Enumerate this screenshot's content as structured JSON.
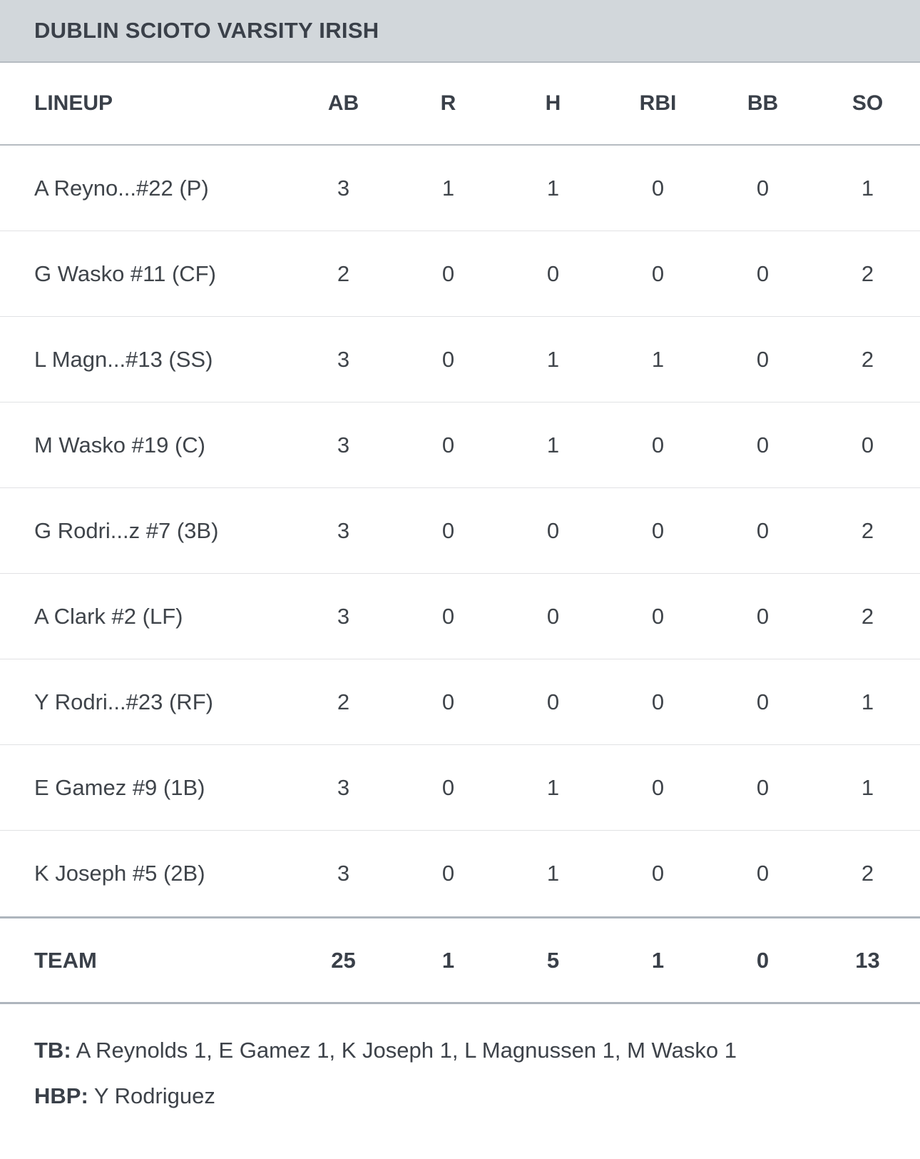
{
  "header": {
    "title": "DUBLIN SCIOTO VARSITY IRISH"
  },
  "table": {
    "columns": [
      "LINEUP",
      "AB",
      "R",
      "H",
      "RBI",
      "BB",
      "SO"
    ],
    "rows": [
      {
        "name": "A Reyno...#22 (P)",
        "ab": "3",
        "r": "1",
        "h": "1",
        "rbi": "0",
        "bb": "0",
        "so": "1"
      },
      {
        "name": "G Wasko #11 (CF)",
        "ab": "2",
        "r": "0",
        "h": "0",
        "rbi": "0",
        "bb": "0",
        "so": "2"
      },
      {
        "name": "L Magn...#13 (SS)",
        "ab": "3",
        "r": "0",
        "h": "1",
        "rbi": "1",
        "bb": "0",
        "so": "2"
      },
      {
        "name": "M Wasko #19 (C)",
        "ab": "3",
        "r": "0",
        "h": "1",
        "rbi": "0",
        "bb": "0",
        "so": "0"
      },
      {
        "name": "G Rodri...z #7 (3B)",
        "ab": "3",
        "r": "0",
        "h": "0",
        "rbi": "0",
        "bb": "0",
        "so": "2"
      },
      {
        "name": "A Clark #2 (LF)",
        "ab": "3",
        "r": "0",
        "h": "0",
        "rbi": "0",
        "bb": "0",
        "so": "2"
      },
      {
        "name": "Y Rodri...#23 (RF)",
        "ab": "2",
        "r": "0",
        "h": "0",
        "rbi": "0",
        "bb": "0",
        "so": "1"
      },
      {
        "name": "E Gamez #9 (1B)",
        "ab": "3",
        "r": "0",
        "h": "1",
        "rbi": "0",
        "bb": "0",
        "so": "1"
      },
      {
        "name": "K Joseph #5 (2B)",
        "ab": "3",
        "r": "0",
        "h": "1",
        "rbi": "0",
        "bb": "0",
        "so": "2"
      }
    ],
    "team_row": {
      "name": "TEAM",
      "ab": "25",
      "r": "1",
      "h": "5",
      "rbi": "1",
      "bb": "0",
      "so": "13"
    }
  },
  "notes": {
    "tb_label": "TB:",
    "tb_text": "A Reynolds 1, E Gamez 1, K Joseph 1, L Magnussen 1, M Wasko 1",
    "hbp_label": "HBP:",
    "hbp_text": "Y Rodriguez"
  },
  "colors": {
    "header_bg": "#d2d7db",
    "text": "#3d4249",
    "row_divider": "#e1e2e4",
    "heavy_divider": "#aeb5bd"
  }
}
